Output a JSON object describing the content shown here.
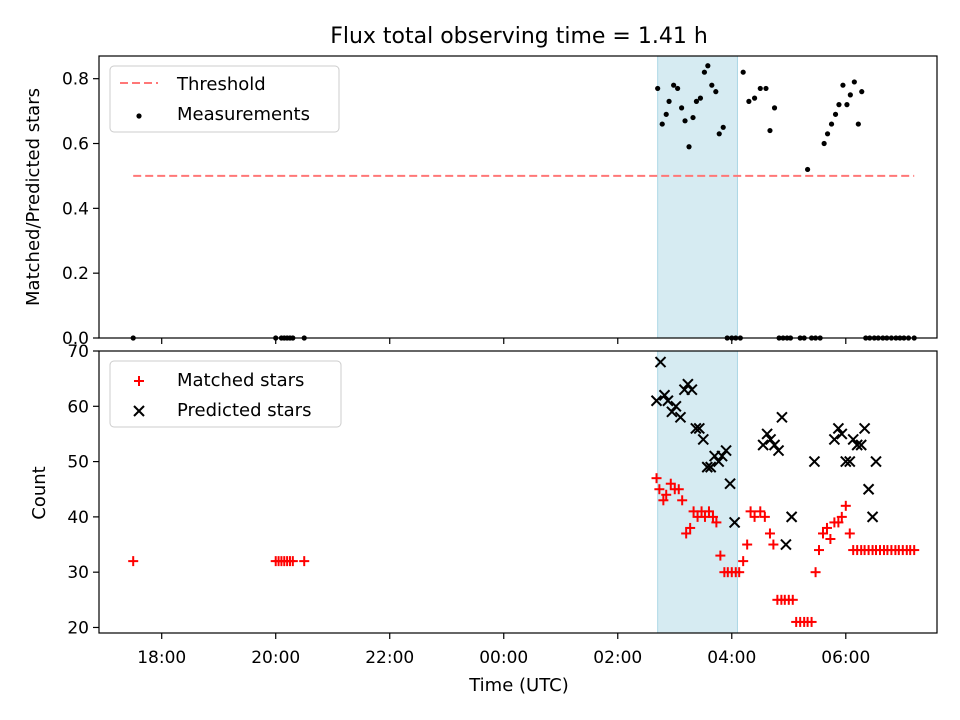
{
  "title": "Flux total observing time = 1.41 h",
  "shading": {
    "start_hour": 2.7,
    "end_hour": 4.1,
    "color": "#add8e6"
  },
  "chart_data": [
    {
      "type": "scatter",
      "ylabel": "Matched/Predicted stars",
      "ylim": [
        0,
        0.87
      ],
      "yticks": [
        0.0,
        0.2,
        0.4,
        0.6,
        0.8
      ],
      "ytick_labels": [
        "0.0",
        "0.2",
        "0.4",
        "0.6",
        "0.8"
      ],
      "legend_position": "top-left",
      "threshold": {
        "name": "Threshold",
        "value": 0.5,
        "x_range": [
          -6.5,
          7.2
        ],
        "color": "#ff7777"
      },
      "series": [
        {
          "name": "Measurements",
          "color": "#000000",
          "x": [
            -6.5,
            -4.0,
            -3.9,
            -3.85,
            -3.8,
            -3.75,
            -3.7,
            -3.5,
            2.7,
            2.78,
            2.85,
            2.9,
            2.98,
            3.05,
            3.12,
            3.18,
            3.25,
            3.32,
            3.38,
            3.45,
            3.52,
            3.58,
            3.65,
            3.72,
            3.78,
            3.85,
            3.92,
            4.0,
            4.07,
            4.15,
            4.2,
            4.3,
            4.4,
            4.5,
            4.6,
            4.67,
            4.75,
            4.83,
            4.9,
            4.97,
            5.03,
            5.2,
            5.27,
            5.33,
            5.4,
            5.47,
            5.55,
            5.62,
            5.68,
            5.75,
            5.82,
            5.88,
            5.95,
            6.02,
            6.08,
            6.15,
            6.22,
            6.28,
            6.35,
            6.42,
            6.5,
            6.57,
            6.65,
            6.72,
            6.8,
            6.88,
            6.95,
            7.02,
            7.1,
            7.2
          ],
          "y": [
            0,
            0,
            0,
            0,
            0,
            0,
            0,
            0,
            0.77,
            0.66,
            0.69,
            0.73,
            0.78,
            0.77,
            0.71,
            0.67,
            0.59,
            0.68,
            0.73,
            0.74,
            0.82,
            0.84,
            0.78,
            0.76,
            0.63,
            0.65,
            0,
            0,
            0,
            0,
            0.82,
            0.73,
            0.74,
            0.77,
            0.77,
            0.64,
            0.71,
            0,
            0,
            0,
            0,
            0,
            0,
            0.52,
            0,
            0,
            0,
            0.6,
            0.63,
            0.66,
            0.69,
            0.72,
            0.78,
            0.72,
            0.75,
            0.79,
            0.66,
            0.76,
            0,
            0,
            0,
            0,
            0,
            0,
            0,
            0,
            0,
            0,
            0,
            0
          ]
        }
      ]
    },
    {
      "type": "scatter",
      "title": "",
      "xlabel": "Time (UTC)",
      "ylabel": "Count",
      "xlim": [
        -7.1,
        7.6
      ],
      "ylim": [
        19,
        70
      ],
      "yticks": [
        20,
        30,
        40,
        50,
        60,
        70
      ],
      "ytick_labels": [
        "20",
        "30",
        "40",
        "50",
        "60",
        "70"
      ],
      "xticks": [
        -6,
        -4,
        -2,
        0,
        2,
        4,
        6
      ],
      "xtick_labels": [
        "18:00",
        "20:00",
        "22:00",
        "00:00",
        "02:00",
        "04:00",
        "06:00"
      ],
      "legend_position": "top-left",
      "series": [
        {
          "name": "Matched stars",
          "marker": "plus",
          "color": "#ff0000",
          "x": [
            -6.5,
            -4.0,
            -3.95,
            -3.9,
            -3.85,
            -3.8,
            -3.75,
            -3.7,
            -3.5,
            2.68,
            2.73,
            2.8,
            2.85,
            2.93,
            3.0,
            3.07,
            3.13,
            3.2,
            3.27,
            3.33,
            3.4,
            3.47,
            3.53,
            3.6,
            3.67,
            3.73,
            3.8,
            3.87,
            3.93,
            4.0,
            4.07,
            4.13,
            4.2,
            4.27,
            4.33,
            4.4,
            4.5,
            4.58,
            4.67,
            4.73,
            4.8,
            4.87,
            4.93,
            5.0,
            5.07,
            5.13,
            5.2,
            5.27,
            5.33,
            5.4,
            5.47,
            5.53,
            5.6,
            5.67,
            5.73,
            5.8,
            5.87,
            5.93,
            6.0,
            6.07,
            6.13,
            6.2,
            6.27,
            6.33,
            6.4,
            6.47,
            6.53,
            6.6,
            6.67,
            6.73,
            6.8,
            6.87,
            6.93,
            7.0,
            7.07,
            7.13,
            7.2
          ],
          "y": [
            32,
            32,
            32,
            32,
            32,
            32,
            32,
            32,
            32,
            47,
            45,
            43,
            44,
            46,
            45,
            45,
            43,
            37,
            38,
            41,
            40,
            41,
            40,
            41,
            40,
            39,
            33,
            30,
            30,
            30,
            30,
            30,
            32,
            35,
            41,
            40,
            41,
            40,
            37,
            35,
            25,
            25,
            25,
            25,
            25,
            21,
            21,
            21,
            21,
            21,
            30,
            34,
            37,
            38,
            36,
            39,
            39,
            40,
            42,
            37,
            34,
            34,
            34,
            34,
            34,
            34,
            34,
            34,
            34,
            34,
            34,
            34,
            34,
            34,
            34,
            34,
            34
          ]
        },
        {
          "name": "Predicted stars",
          "marker": "x",
          "color": "#000000",
          "x": [
            2.68,
            2.75,
            2.82,
            2.88,
            2.95,
            3.02,
            3.1,
            3.17,
            3.23,
            3.3,
            3.37,
            3.43,
            3.5,
            3.57,
            3.63,
            3.7,
            3.77,
            3.83,
            3.9,
            3.97,
            4.05,
            4.55,
            4.62,
            4.68,
            4.75,
            4.82,
            4.88,
            4.95,
            5.05,
            5.45,
            5.8,
            5.87,
            5.93,
            6.0,
            6.07,
            6.13,
            6.2,
            6.27,
            6.33,
            6.4,
            6.47,
            6.53
          ],
          "y": [
            61,
            68,
            62,
            61,
            59,
            60,
            58,
            63,
            64,
            63,
            56,
            56,
            54,
            49,
            49,
            51,
            50,
            51,
            52,
            46,
            39,
            53,
            55,
            54,
            53,
            52,
            58,
            35,
            40,
            50,
            54,
            56,
            55,
            50,
            50,
            54,
            53,
            53,
            56,
            45,
            40,
            50
          ]
        }
      ]
    }
  ]
}
